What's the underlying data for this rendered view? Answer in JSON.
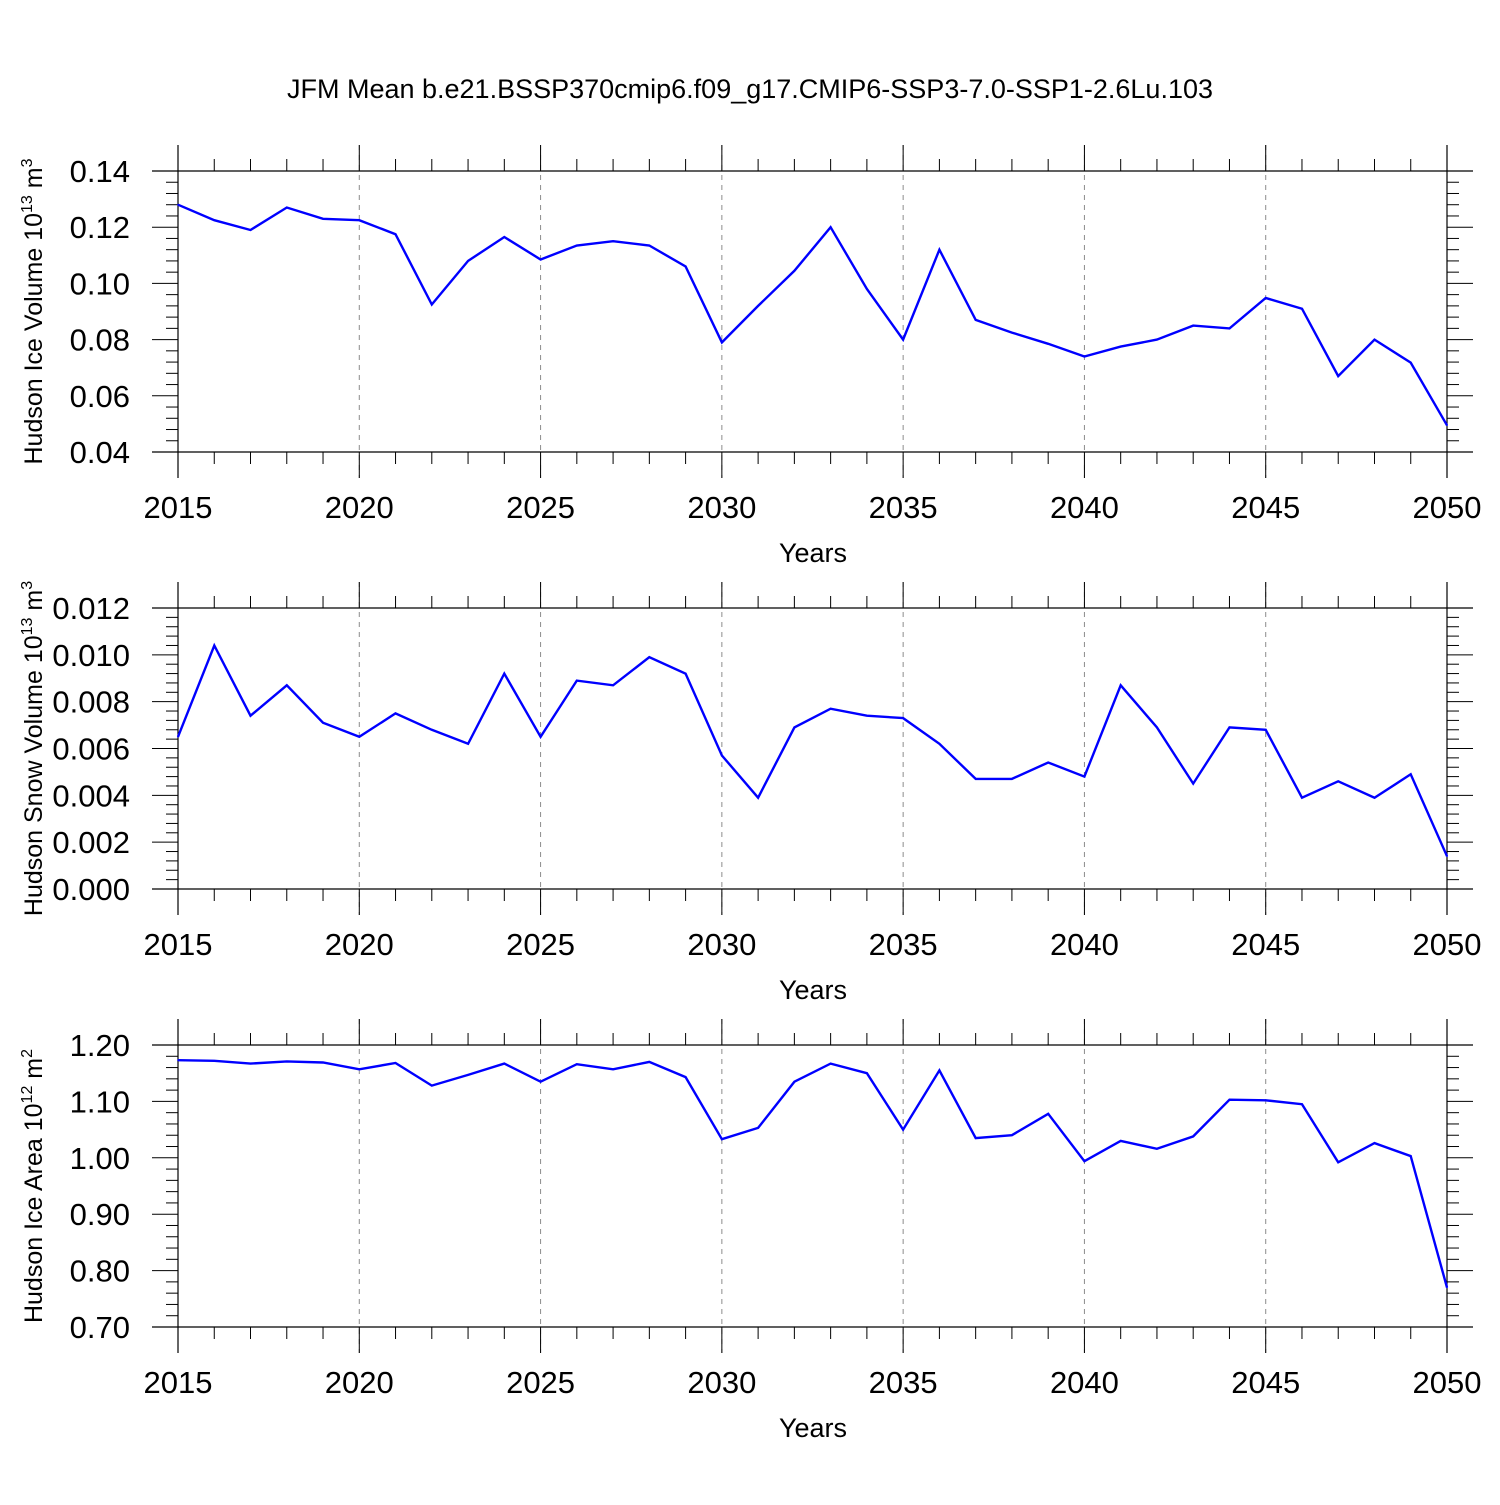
{
  "figure_title": "JFM Mean b.e21.BSSP370cmip6.f09_g17.CMIP6-SSP3-7.0-SSP1-2.6Lu.103",
  "colors": {
    "line": "#0000ff",
    "axis": "#000000",
    "grid": "#8c8c8c"
  },
  "chart_data": [
    {
      "type": "line",
      "title": "JFM Mean b.e21.BSSP370cmip6.f09_g17.CMIP6-SSP3-7.0-SSP1-2.6Lu.103",
      "xlabel": "Years",
      "ylabel": {
        "prefix": "Hudson Ice Volume 10",
        "exp1": "13",
        "unit": " m",
        "exp2": "3"
      },
      "xlim": [
        2015,
        2050
      ],
      "ylim": [
        0.04,
        0.14
      ],
      "x_ticks": [
        "2015",
        "2020",
        "2025",
        "2030",
        "2035",
        "2040",
        "2045",
        "2050"
      ],
      "y_ticks": [
        "0.04",
        "0.06",
        "0.08",
        "0.10",
        "0.12",
        "0.14"
      ],
      "grid": "vertical dashed at major x ticks",
      "series": [
        {
          "name": "Hudson Ice Volume",
          "color": "#0000ff",
          "x": [
            2015,
            2016,
            2017,
            2018,
            2019,
            2020,
            2021,
            2022,
            2023,
            2024,
            2025,
            2026,
            2027,
            2028,
            2029,
            2030,
            2031,
            2032,
            2033,
            2034,
            2035,
            2036,
            2037,
            2038,
            2039,
            2040,
            2041,
            2042,
            2043,
            2044,
            2045,
            2046,
            2047,
            2048,
            2049,
            2050
          ],
          "values": [
            0.128,
            0.1225,
            0.119,
            0.127,
            0.123,
            0.1225,
            0.1175,
            0.0925,
            0.108,
            0.1165,
            0.1085,
            0.1135,
            0.115,
            0.1135,
            0.106,
            0.079,
            0.092,
            0.1045,
            0.12,
            0.098,
            0.08,
            0.112,
            0.087,
            0.0825,
            0.0785,
            0.074,
            0.0775,
            0.08,
            0.085,
            0.084,
            0.0948,
            0.091,
            0.067,
            0.08,
            0.0718,
            0.0495
          ]
        }
      ]
    },
    {
      "type": "line",
      "xlabel": "Years",
      "ylabel": {
        "prefix": "Hudson Snow Volume 10",
        "exp1": "13",
        "unit": " m",
        "exp2": "3"
      },
      "xlim": [
        2015,
        2050
      ],
      "ylim": [
        0.0,
        0.012
      ],
      "x_ticks": [
        "2015",
        "2020",
        "2025",
        "2030",
        "2035",
        "2040",
        "2045",
        "2050"
      ],
      "y_ticks": [
        "0.000",
        "0.002",
        "0.004",
        "0.006",
        "0.008",
        "0.010",
        "0.012"
      ],
      "grid": "vertical dashed at major x ticks",
      "series": [
        {
          "name": "Hudson Snow Volume",
          "color": "#0000ff",
          "x": [
            2015,
            2016,
            2017,
            2018,
            2019,
            2020,
            2021,
            2022,
            2023,
            2024,
            2025,
            2026,
            2027,
            2028,
            2029,
            2030,
            2031,
            2032,
            2033,
            2034,
            2035,
            2036,
            2037,
            2038,
            2039,
            2040,
            2041,
            2042,
            2043,
            2044,
            2045,
            2046,
            2047,
            2048,
            2049,
            2050
          ],
          "values": [
            0.0065,
            0.0104,
            0.0074,
            0.0087,
            0.0071,
            0.0065,
            0.0075,
            0.0068,
            0.0062,
            0.0092,
            0.0065,
            0.0089,
            0.0087,
            0.0099,
            0.0092,
            0.0057,
            0.0039,
            0.0069,
            0.0077,
            0.0074,
            0.0073,
            0.0062,
            0.0047,
            0.0047,
            0.0054,
            0.0048,
            0.0087,
            0.0069,
            0.0045,
            0.0069,
            0.0068,
            0.0039,
            0.0046,
            0.0039,
            0.0049,
            0.0014
          ]
        }
      ]
    },
    {
      "type": "line",
      "xlabel": "Years",
      "ylabel": {
        "prefix": "Hudson Ice Area 10",
        "exp1": "12",
        "unit": " m",
        "exp2": "2"
      },
      "xlim": [
        2015,
        2050
      ],
      "ylim": [
        0.7,
        1.2
      ],
      "x_ticks": [
        "2015",
        "2020",
        "2025",
        "2030",
        "2035",
        "2040",
        "2045",
        "2050"
      ],
      "y_ticks": [
        "0.70",
        "0.80",
        "0.90",
        "1.00",
        "1.10",
        "1.20"
      ],
      "grid": "vertical dashed at major x ticks",
      "series": [
        {
          "name": "Hudson Ice Area",
          "color": "#0000ff",
          "x": [
            2015,
            2016,
            2017,
            2018,
            2019,
            2020,
            2021,
            2022,
            2023,
            2024,
            2025,
            2026,
            2027,
            2028,
            2029,
            2030,
            2031,
            2032,
            2033,
            2034,
            2035,
            2036,
            2037,
            2038,
            2039,
            2040,
            2041,
            2042,
            2043,
            2044,
            2045,
            2046,
            2047,
            2048,
            2049,
            2050
          ],
          "values": [
            1.173,
            1.172,
            1.167,
            1.171,
            1.169,
            1.157,
            1.168,
            1.128,
            1.147,
            1.167,
            1.135,
            1.166,
            1.157,
            1.17,
            1.143,
            1.033,
            1.053,
            1.135,
            1.167,
            1.15,
            1.05,
            1.155,
            1.035,
            1.04,
            1.078,
            0.994,
            1.03,
            1.016,
            1.038,
            1.103,
            1.102,
            1.095,
            0.992,
            1.026,
            1.003,
            0.77
          ]
        }
      ]
    }
  ]
}
